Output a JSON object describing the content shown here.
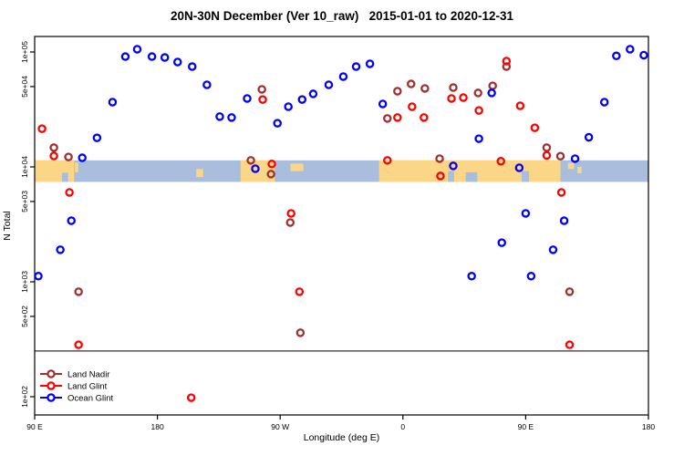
{
  "title": "20N-30N December (Ver 10_raw)   2015-01-01 to 2020-12-31",
  "chart_data": {
    "type": "scatter",
    "title": "20N-30N December (Ver 10_raw)   2015-01-01 to 2020-12-31",
    "xlabel": "Longitude (deg E)",
    "ylabel": "N Total",
    "x_axis": {
      "note": "axis spans 450 deg of longitude starting at 90E, wrapping east through 180, 90W, 0, 90E to 180",
      "range_deg": [
        0,
        450
      ],
      "ticks": [
        {
          "deg": 0,
          "label": "90 E"
        },
        {
          "deg": 90,
          "label": "180"
        },
        {
          "deg": 180,
          "label": "90 W"
        },
        {
          "deg": 270,
          "label": "0"
        },
        {
          "deg": 360,
          "label": "90 E"
        },
        {
          "deg": 450,
          "label": "180"
        }
      ]
    },
    "y_axis": {
      "scale": "log10",
      "range_log10": [
        1.841,
        5.135
      ],
      "ticks": [
        {
          "value": 100000,
          "label": "1e+05"
        },
        {
          "value": 50000,
          "label": "5e+04"
        },
        {
          "value": 10000,
          "label": "1e+04"
        },
        {
          "value": 5000,
          "label": "5e+03"
        },
        {
          "value": 1000,
          "label": "1e+03"
        },
        {
          "value": 500,
          "label": "5e+02"
        },
        {
          "value": 100,
          "label": "1e+02"
        }
      ]
    },
    "reference_line": {
      "value": 250,
      "color": "#000000"
    },
    "map_band": {
      "description": "20N-30N latitude strip world map drawn across the plot near 1e+04",
      "top_value": 11400,
      "bottom_value": 7400,
      "ocean_color": "#A8BEDC",
      "land_color": "#FBD687",
      "land_segments_deg": [
        [
          0,
          28.9
        ],
        [
          151,
          176
        ],
        [
          252.5,
          385.5
        ]
      ],
      "islands_deg": [
        [
          29.5,
          32,
          0.1,
          0.55
        ],
        [
          118.5,
          123.5,
          0.4,
          0.78
        ],
        [
          187.5,
          197,
          0.15,
          0.5
        ],
        [
          391,
          395.5,
          0.12,
          0.4
        ],
        [
          398,
          401,
          0.3,
          0.6
        ]
      ],
      "coast_notches_deg": [
        [
          20,
          24.5,
          0.42
        ],
        [
          303,
          307.5,
          0.5
        ],
        [
          316,
          324.5,
          0.45
        ],
        [
          357,
          362.5,
          0.5
        ]
      ]
    },
    "legend": [
      {
        "label": "Land Nadir",
        "color": "#A03030"
      },
      {
        "label": "Land Glint",
        "color": "#FF0000"
      },
      {
        "label": "Ocean Glint",
        "color": "#0000FF"
      }
    ],
    "series": [
      {
        "name": "Land Nadir",
        "color": "#A03030",
        "points": [
          [
            14.1,
            14700
          ],
          [
            24.8,
            12200
          ],
          [
            32.2,
            820
          ],
          [
            158.5,
            11400
          ],
          [
            166.6,
            47300
          ],
          [
            173.3,
            8650
          ],
          [
            187.4,
            3280
          ],
          [
            194.8,
            360
          ],
          [
            258.6,
            26400
          ],
          [
            266,
            45600
          ],
          [
            276,
            52700
          ],
          [
            286.1,
            48200
          ],
          [
            296.9,
            11800
          ],
          [
            306.9,
            49000
          ],
          [
            325.1,
            44000
          ],
          [
            335.8,
            50800
          ],
          [
            345.9,
            74600
          ],
          [
            375.4,
            14700
          ],
          [
            385.5,
            12400
          ],
          [
            392.2,
            820
          ]
        ]
      },
      {
        "name": "Land Glint",
        "color": "#FF0000",
        "points": [
          [
            5.4,
            21500
          ],
          [
            14.1,
            12450
          ],
          [
            25.5,
            6000
          ],
          [
            32.2,
            283
          ],
          [
            114.8,
            98
          ],
          [
            167.2,
            38600
          ],
          [
            173.9,
            10600
          ],
          [
            188,
            3940
          ],
          [
            194.1,
            820
          ],
          [
            258.6,
            11400
          ],
          [
            266,
            26900
          ],
          [
            276.7,
            33400
          ],
          [
            285.4,
            26900
          ],
          [
            297.5,
            8340
          ],
          [
            305.6,
            39400
          ],
          [
            314.3,
            40100
          ],
          [
            325.7,
            31000
          ],
          [
            341.8,
            11200
          ],
          [
            345.9,
            83300
          ],
          [
            356,
            34000
          ],
          [
            366.7,
            21900
          ],
          [
            375.4,
            12600
          ],
          [
            386.2,
            6000
          ],
          [
            392.2,
            283
          ]
        ]
      },
      {
        "name": "Ocean Glint",
        "color": "#0000FF",
        "points": [
          [
            2.7,
            1120
          ],
          [
            18.8,
            1900
          ],
          [
            26.9,
            3400
          ],
          [
            34.9,
            12000
          ],
          [
            45.7,
            17900
          ],
          [
            57.1,
            36600
          ],
          [
            66.5,
            91200
          ],
          [
            75.2,
            105700
          ],
          [
            86,
            91200
          ],
          [
            95.4,
            89600
          ],
          [
            104.8,
            81800
          ],
          [
            115.5,
            74600
          ],
          [
            126.3,
            51800
          ],
          [
            135.7,
            27400
          ],
          [
            144.4,
            26900
          ],
          [
            155.8,
            39400
          ],
          [
            161.8,
            9640
          ],
          [
            178,
            24000
          ],
          [
            186,
            33400
          ],
          [
            196.1,
            38600
          ],
          [
            204.2,
            43200
          ],
          [
            215.6,
            51800
          ],
          [
            226.3,
            61100
          ],
          [
            235.7,
            74600
          ],
          [
            245.8,
            78900
          ],
          [
            255.2,
            35300
          ],
          [
            306.9,
            10200
          ],
          [
            320.4,
            1120
          ],
          [
            325.7,
            17600
          ],
          [
            335.1,
            44000
          ],
          [
            342.5,
            2190
          ],
          [
            355.3,
            9820
          ],
          [
            360,
            3940
          ],
          [
            364,
            1120
          ],
          [
            380.1,
            1900
          ],
          [
            388.2,
            3400
          ],
          [
            396.2,
            11800
          ],
          [
            406.3,
            18100
          ],
          [
            417.7,
            36600
          ],
          [
            426.5,
            92500
          ],
          [
            436.5,
            105700
          ],
          [
            446.6,
            93800
          ]
        ]
      }
    ]
  }
}
